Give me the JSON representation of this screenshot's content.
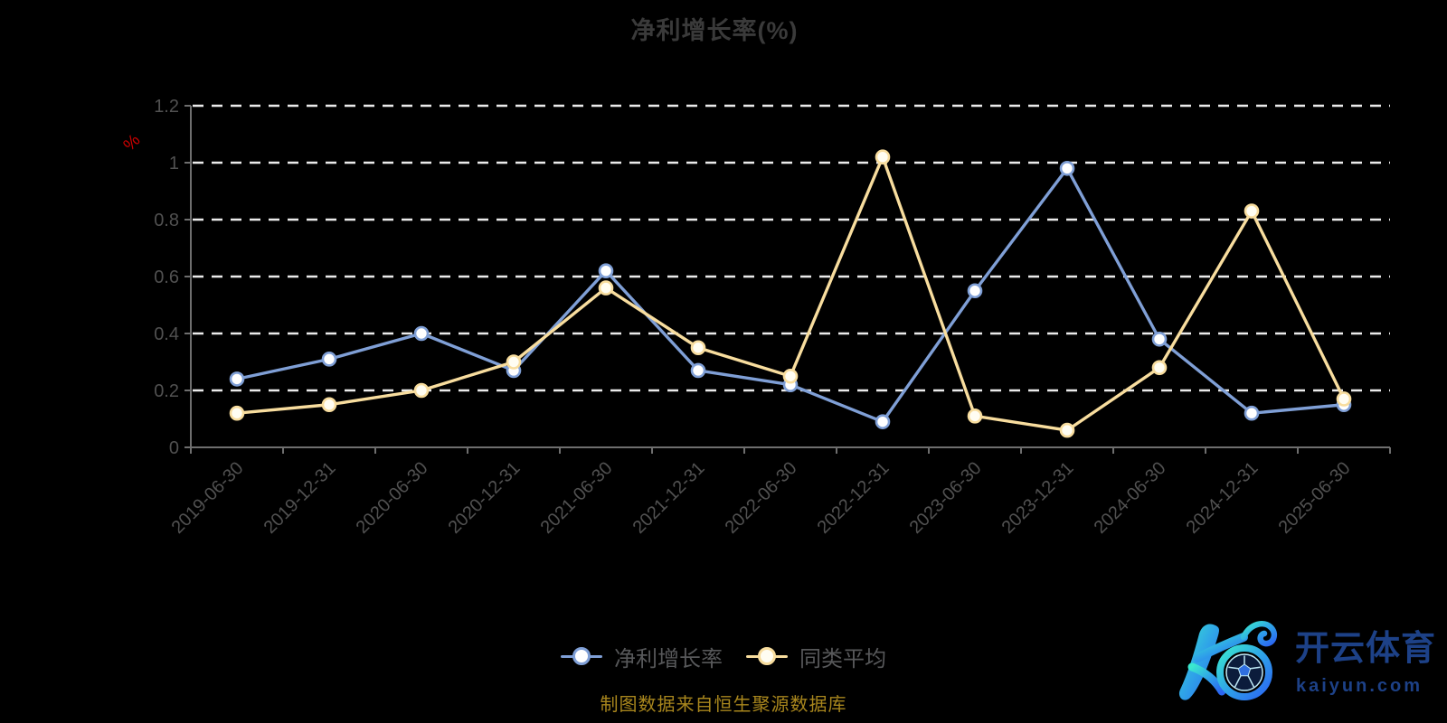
{
  "page": {
    "background": "#000000"
  },
  "chart_data": {
    "type": "line",
    "title": "净利增长率(%)",
    "title_color": "#3a3a3a",
    "y_axis_name": "%",
    "y_axis_name_color": "#cc0000",
    "categories": [
      "2019-06-30",
      "2019-12-31",
      "2020-06-30",
      "2020-12-31",
      "2021-06-30",
      "2021-12-31",
      "2022-06-30",
      "2022-12-31",
      "2023-06-30",
      "2023-12-31",
      "2024-06-30",
      "2024-12-31",
      "2025-06-30"
    ],
    "series": [
      {
        "name": "净利增长率",
        "color": "#7f9fd6",
        "marker_fill": "#ffffff",
        "values": [
          0.24,
          0.31,
          0.4,
          0.27,
          0.62,
          0.27,
          0.22,
          0.09,
          0.55,
          0.98,
          0.38,
          0.12,
          0.15
        ]
      },
      {
        "name": "同类平均",
        "color": "#f8dd9e",
        "marker_fill": "#fffdf2",
        "values": [
          0.12,
          0.15,
          0.2,
          0.3,
          0.56,
          0.35,
          0.25,
          1.02,
          0.11,
          0.06,
          0.28,
          0.83,
          0.17
        ]
      }
    ],
    "ylim": [
      0,
      1.2
    ],
    "yticks": [
      "0",
      "0.2",
      "0.4",
      "0.6",
      "0.8",
      "1",
      "1.2"
    ],
    "grid": "horizontal-dashed",
    "x_label_rotation": 45,
    "legend_position": "bottom-center",
    "axis_color": "#6e6e6e",
    "grid_color": "#ebebeb",
    "tick_label_color": "#515151",
    "legend_text_color": "#57585a"
  },
  "footer": {
    "source_note": "制图数据来自恒生聚源数据库",
    "color": "#a8861d"
  },
  "logo": {
    "title": "开云体育",
    "domain": "kaiyun.com",
    "text_color": "#1d4187"
  }
}
